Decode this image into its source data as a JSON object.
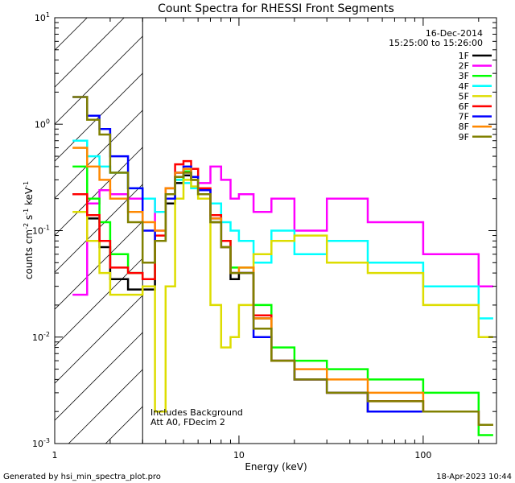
{
  "chart_data": {
    "type": "line",
    "title": "Count Spectra for RHESSI Front Segments",
    "xlabel": "Energy (keV)",
    "ylabel": {
      "base": "counts cm",
      "sup1": "-2",
      "mid1": " s",
      "sup2": "-1",
      "mid2": " keV",
      "sup3": "-1"
    },
    "x_scale": "log",
    "y_scale": "log",
    "xlim": [
      1,
      250
    ],
    "ylim": [
      0.001,
      10
    ],
    "x_ticks": [
      {
        "value": 1,
        "label": "1"
      },
      {
        "value": 10,
        "label": "10"
      },
      {
        "value": 100,
        "label": "100"
      }
    ],
    "y_ticks": [
      {
        "value": 0.001,
        "base": "10",
        "exp": "-3"
      },
      {
        "value": 0.01,
        "base": "10",
        "exp": "-2"
      },
      {
        "value": 0.1,
        "base": "10",
        "exp": "-1"
      },
      {
        "value": 1,
        "base": "10",
        "exp": "0"
      },
      {
        "value": 10,
        "base": "10",
        "exp": "1"
      }
    ],
    "excluded_region": {
      "x_from": 1,
      "x_to": 3
    },
    "date": "16-Dec-2014",
    "time_range": "15:25:00 to 15:26:00",
    "annotations": [
      "Includes Background",
      "Att A0, FDecim 2"
    ],
    "legend_position": "top-right",
    "series": [
      {
        "name": "1F",
        "color": "#000000",
        "x": [
          1.25,
          1.5,
          1.75,
          2.0,
          2.5,
          3.0,
          3.5,
          4.0,
          4.5,
          5.0,
          5.5,
          6.0,
          7.0,
          8.0,
          9.0,
          10.0,
          12.0,
          15.0,
          20.0,
          30.0,
          50.0,
          100.0,
          200.0
        ],
        "y": [
          0.22,
          0.13,
          0.07,
          0.035,
          0.028,
          0.028,
          0.08,
          0.18,
          0.28,
          0.33,
          0.3,
          0.22,
          0.12,
          0.07,
          0.035,
          0.04,
          0.015,
          0.006,
          0.004,
          0.003,
          0.002,
          0.002,
          0.0015
        ]
      },
      {
        "name": "2F",
        "color": "#ff00ff",
        "x": [
          1.25,
          1.5,
          1.75,
          2.0,
          2.5,
          3.0,
          3.5,
          4.0,
          4.5,
          5.0,
          5.5,
          6.0,
          7.0,
          8.0,
          9.0,
          10.0,
          12.0,
          15.0,
          20.0,
          30.0,
          50.0,
          100.0,
          200.0
        ],
        "y": [
          0.025,
          0.18,
          0.24,
          0.22,
          0.2,
          0.2,
          0.1,
          0.2,
          0.35,
          0.38,
          0.32,
          0.28,
          0.4,
          0.3,
          0.2,
          0.22,
          0.15,
          0.2,
          0.1,
          0.2,
          0.12,
          0.06,
          0.03
        ]
      },
      {
        "name": "3F",
        "color": "#00ff00",
        "x": [
          1.25,
          1.5,
          1.75,
          2.0,
          2.5,
          3.0,
          3.5,
          4.0,
          4.5,
          5.0,
          5.5,
          6.0,
          7.0,
          8.0,
          9.0,
          10.0,
          12.0,
          15.0,
          20.0,
          30.0,
          50.0,
          100.0,
          200.0
        ],
        "y": [
          0.4,
          0.2,
          0.12,
          0.06,
          0.04,
          0.035,
          0.08,
          0.2,
          0.3,
          0.36,
          0.3,
          0.22,
          0.14,
          0.08,
          0.045,
          0.045,
          0.02,
          0.008,
          0.006,
          0.005,
          0.004,
          0.003,
          0.0012
        ]
      },
      {
        "name": "4F",
        "color": "#00ffff",
        "x": [
          1.25,
          1.5,
          1.75,
          2.0,
          2.5,
          3.0,
          3.5,
          4.0,
          4.5,
          5.0,
          5.5,
          6.0,
          7.0,
          8.0,
          9.0,
          10.0,
          12.0,
          15.0,
          20.0,
          30.0,
          50.0,
          100.0,
          200.0
        ],
        "y": [
          0.7,
          0.5,
          0.4,
          0.35,
          0.25,
          0.2,
          0.15,
          0.25,
          0.3,
          0.28,
          0.25,
          0.2,
          0.18,
          0.12,
          0.1,
          0.08,
          0.05,
          0.1,
          0.06,
          0.08,
          0.05,
          0.03,
          0.015
        ]
      },
      {
        "name": "5F",
        "color": "#dddd00",
        "x": [
          1.25,
          1.5,
          1.75,
          2.0,
          2.5,
          3.0,
          3.5,
          4.0,
          4.5,
          5.0,
          5.5,
          6.0,
          7.0,
          8.0,
          9.0,
          10.0,
          12.0,
          15.0,
          20.0,
          30.0,
          50.0,
          100.0,
          200.0
        ],
        "y": [
          0.15,
          0.08,
          0.04,
          0.025,
          0.025,
          0.03,
          0.002,
          0.03,
          0.2,
          0.3,
          0.26,
          0.2,
          0.02,
          0.008,
          0.01,
          0.02,
          0.06,
          0.08,
          0.09,
          0.05,
          0.04,
          0.02,
          0.01
        ]
      },
      {
        "name": "6F",
        "color": "#ff0000",
        "x": [
          1.25,
          1.5,
          1.75,
          2.0,
          2.5,
          3.0,
          3.5,
          4.0,
          4.5,
          5.0,
          5.5,
          6.0,
          7.0,
          8.0,
          9.0,
          10.0,
          12.0,
          15.0,
          20.0,
          30.0,
          50.0,
          100.0,
          200.0
        ],
        "y": [
          0.22,
          0.14,
          0.08,
          0.045,
          0.04,
          0.035,
          0.09,
          0.25,
          0.42,
          0.45,
          0.38,
          0.25,
          0.14,
          0.08,
          0.04,
          0.04,
          0.016,
          0.006,
          0.004,
          0.003,
          0.0025,
          0.002,
          0.0015
        ]
      },
      {
        "name": "7F",
        "color": "#0000ff",
        "x": [
          1.25,
          1.5,
          1.75,
          2.0,
          2.5,
          3.0,
          3.5,
          4.0,
          4.5,
          5.0,
          5.5,
          6.0,
          7.0,
          8.0,
          9.0,
          10.0,
          12.0,
          15.0,
          20.0,
          30.0,
          50.0,
          100.0,
          200.0
        ],
        "y": [
          1.8,
          1.2,
          0.9,
          0.5,
          0.25,
          0.1,
          0.08,
          0.2,
          0.35,
          0.4,
          0.32,
          0.24,
          0.13,
          0.07,
          0.04,
          0.04,
          0.01,
          0.006,
          0.004,
          0.003,
          0.002,
          0.002,
          0.0015
        ]
      },
      {
        "name": "8F",
        "color": "#ff8800",
        "x": [
          1.25,
          1.5,
          1.75,
          2.0,
          2.5,
          3.0,
          3.5,
          4.0,
          4.5,
          5.0,
          5.5,
          6.0,
          7.0,
          8.0,
          9.0,
          10.0,
          12.0,
          15.0,
          20.0,
          30.0,
          50.0,
          100.0,
          200.0
        ],
        "y": [
          0.6,
          0.4,
          0.3,
          0.2,
          0.15,
          0.12,
          0.1,
          0.25,
          0.35,
          0.38,
          0.3,
          0.22,
          0.13,
          0.07,
          0.04,
          0.045,
          0.015,
          0.006,
          0.005,
          0.004,
          0.003,
          0.002,
          0.0015
        ]
      },
      {
        "name": "9F",
        "color": "#808000",
        "x": [
          1.25,
          1.5,
          1.75,
          2.0,
          2.5,
          3.0,
          3.5,
          4.0,
          4.5,
          5.0,
          5.5,
          6.0,
          7.0,
          8.0,
          9.0,
          10.0,
          12.0,
          15.0,
          20.0,
          30.0,
          50.0,
          100.0,
          200.0
        ],
        "y": [
          1.8,
          1.1,
          0.8,
          0.35,
          0.12,
          0.05,
          0.08,
          0.22,
          0.32,
          0.35,
          0.3,
          0.22,
          0.12,
          0.07,
          0.04,
          0.04,
          0.012,
          0.006,
          0.004,
          0.003,
          0.0025,
          0.002,
          0.0015
        ]
      }
    ]
  },
  "footer": {
    "generated_by": "Generated by hsi_min_spectra_plot.pro",
    "timestamp": "18-Apr-2023 10:44"
  }
}
